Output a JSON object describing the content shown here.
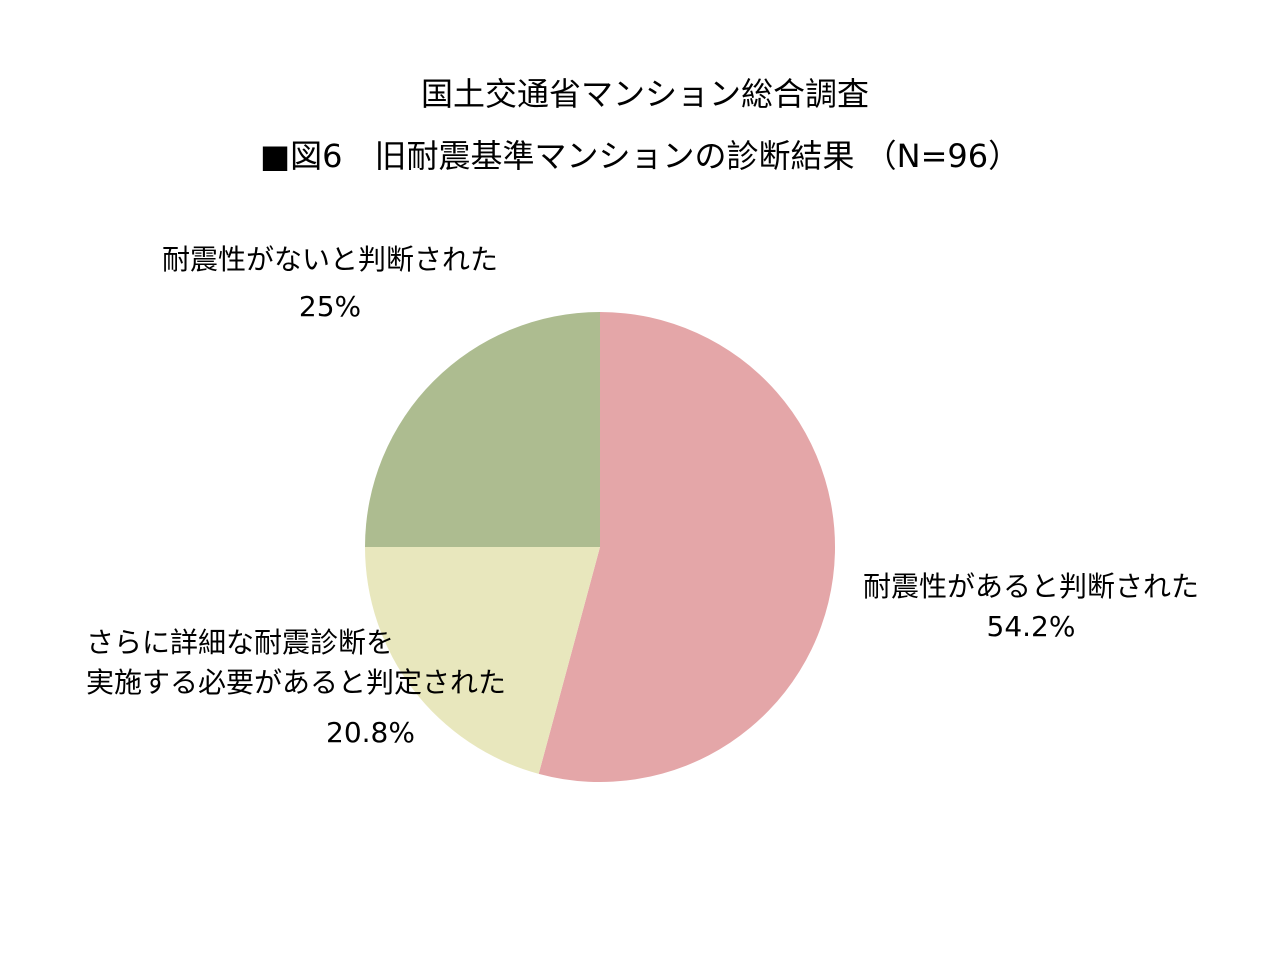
{
  "chart_data": {
    "type": "pie",
    "title": "国土交通省マンション総合調査",
    "subtitle": "■図6　旧耐震基準マンションの診断結果 （N=96）",
    "start_angle_deg": 0,
    "direction": "clockwise",
    "slices": [
      {
        "label": "耐震性があると判断された",
        "value": 54.2,
        "value_label": "54.2%",
        "color": "#e4a6a8"
      },
      {
        "label_lines": [
          "さらに詳細な耐震診断を",
          "実施する必要があると判定された"
        ],
        "value": 20.8,
        "value_label": "20.8%",
        "color": "#e8e7bd"
      },
      {
        "label": "耐震性がないと判断された",
        "value": 25,
        "value_label": "25%",
        "color": "#adbc90"
      }
    ]
  }
}
